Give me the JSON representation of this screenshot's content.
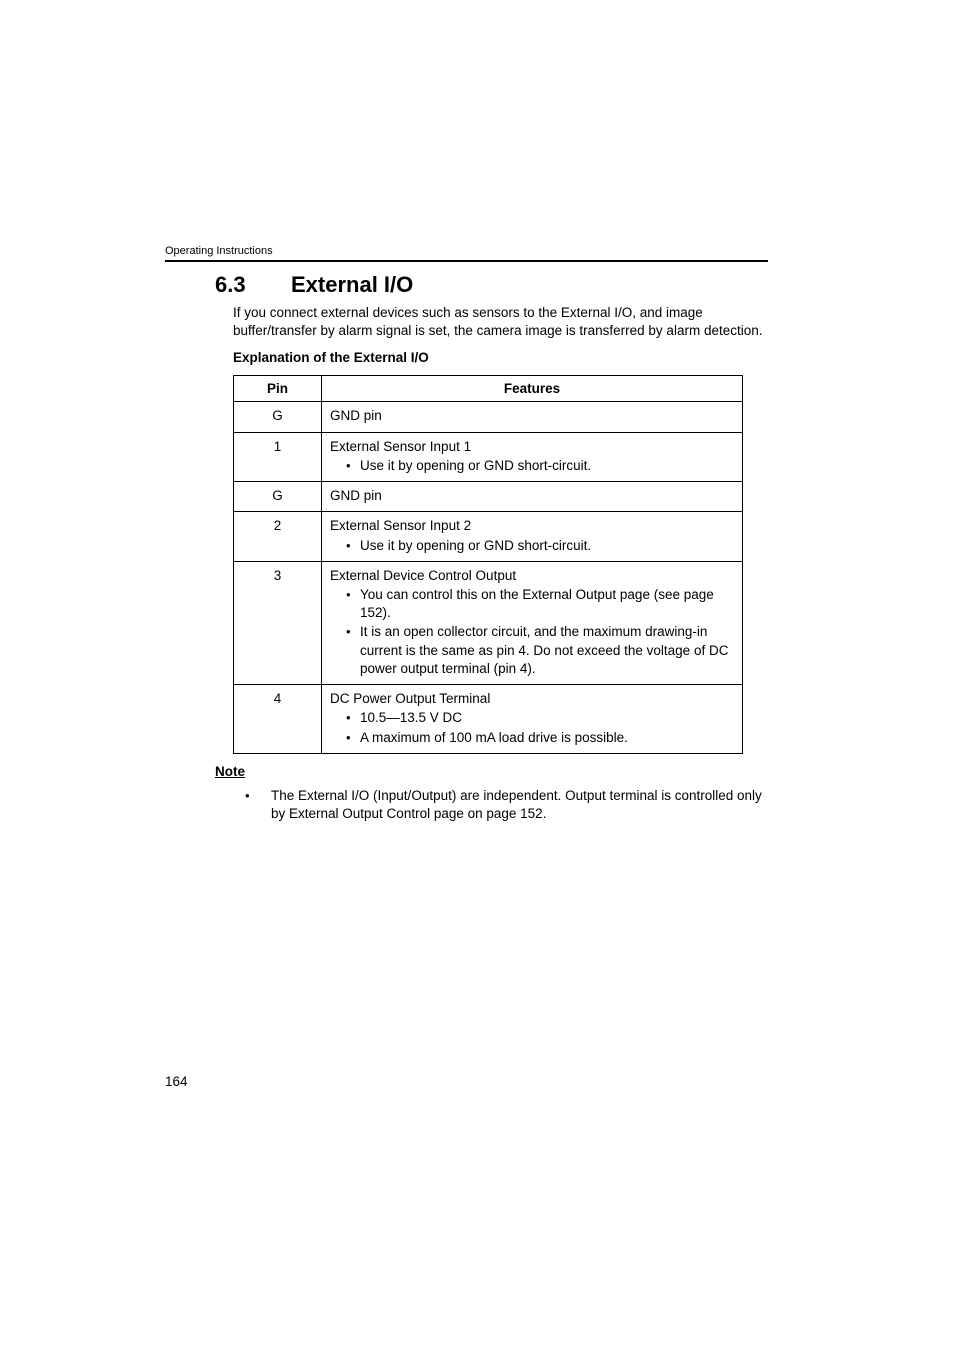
{
  "header": {
    "running_title": "Operating Instructions"
  },
  "section": {
    "number": "6.3",
    "title": "External I/O",
    "intro": "If you connect external devices such as sensors to the External I/O, and image buffer/transfer by alarm signal is set, the camera image is transferred by alarm detection.",
    "table_caption": "Explanation of the External I/O"
  },
  "table": {
    "headers": {
      "pin": "Pin",
      "features": "Features"
    },
    "rows": [
      {
        "pin": "G",
        "title": "GND pin",
        "bullets": []
      },
      {
        "pin": "1",
        "title": "External Sensor Input 1",
        "bullets": [
          "Use it by opening or GND short-circuit."
        ]
      },
      {
        "pin": "G",
        "title": "GND pin",
        "bullets": []
      },
      {
        "pin": "2",
        "title": "External Sensor Input 2",
        "bullets": [
          "Use it by opening or GND short-circuit."
        ]
      },
      {
        "pin": "3",
        "title": "External Device Control Output",
        "bullets": [
          "You can control this on the External Output page (see page 152).",
          "It is an open collector circuit, and the maximum drawing-in current is the same as pin 4. Do not exceed the voltage of DC power output terminal (pin 4)."
        ]
      },
      {
        "pin": "4",
        "title": "DC Power Output Terminal",
        "bullets": [
          "10.5—13.5 V DC",
          "A maximum of 100 mA load drive is possible."
        ]
      }
    ]
  },
  "note": {
    "heading": "Note",
    "items": [
      "The External I/O (Input/Output) are independent. Output terminal is controlled only by External Output Control page on page 152."
    ]
  },
  "page_number": "164"
}
